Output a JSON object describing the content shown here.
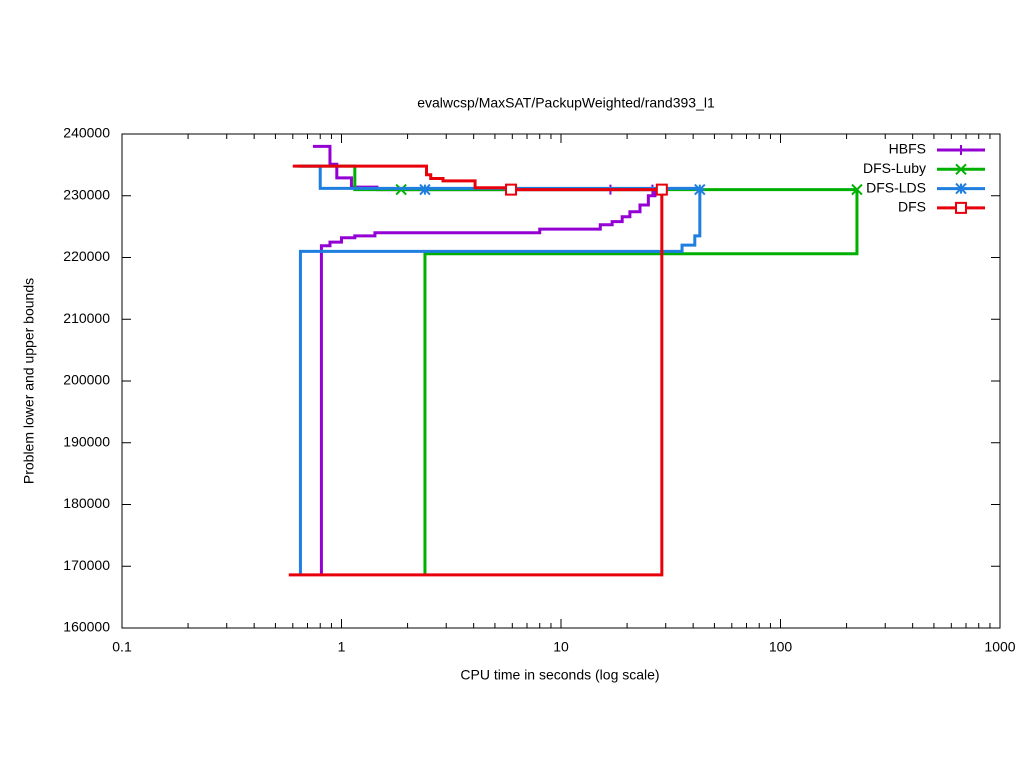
{
  "chart_data": {
    "type": "step",
    "title": "evalwcsp/MaxSAT/PackupWeighted/rand393_l1",
    "x_label": "CPU time in seconds (log scale)",
    "y_label": "Problem lower and upper bounds",
    "x_scale": "log",
    "xlim": [
      0.1,
      1000
    ],
    "xticks": [
      0.1,
      1,
      10,
      100,
      1000
    ],
    "ylim": [
      160000,
      240000
    ],
    "yticks": [
      160000,
      170000,
      180000,
      190000,
      200000,
      210000,
      220000,
      230000,
      240000
    ],
    "legend": "top-right",
    "series": [
      {
        "name": "HBFS",
        "color": "#9400d3",
        "marker": "plus",
        "x": [
          0.741,
          0.886,
          0.952,
          1.11,
          1.45,
          28.5,
          null,
          0.81,
          0.81,
          0.886,
          1.0,
          1.15,
          1.42,
          8.0,
          15.1,
          17.1,
          19.0,
          20.6,
          22.9,
          25.0,
          26.8,
          28.5
        ],
        "y": [
          238000,
          235100,
          232900,
          231400,
          231000,
          231000,
          null,
          168600,
          221900,
          222500,
          223200,
          223500,
          224000,
          224600,
          225300,
          225800,
          226600,
          227400,
          228500,
          230000,
          230900,
          230900
        ],
        "marker_x": [
          16.8,
          26.1
        ],
        "marker_y": [
          231000,
          231000
        ]
      },
      {
        "name": "DFS-Luby",
        "color": "#00b000",
        "marker": "cross",
        "x": [
          0.65,
          1.15,
          223,
          null,
          2.4,
          2.4,
          223,
          223
        ],
        "y": [
          234800,
          231000,
          231000,
          null,
          168600,
          220600,
          220600,
          231000
        ],
        "marker_x": [
          1.87,
          223
        ],
        "marker_y": [
          231000,
          231000
        ]
      },
      {
        "name": "DFS-LDS",
        "color": "#1e7fe0",
        "marker": "star",
        "x": [
          0.63,
          0.8,
          42.9,
          null,
          0.65,
          0.65,
          35.6,
          40.7,
          42.9,
          42.9
        ],
        "y": [
          234800,
          231200,
          231200,
          null,
          168600,
          221000,
          222000,
          223500,
          231000,
          231000
        ],
        "marker_x": [
          2.4,
          42.9
        ],
        "marker_y": [
          231000,
          231000
        ]
      },
      {
        "name": "DFS",
        "color": "#e8000b",
        "marker": "square",
        "x": [
          0.6,
          2.44,
          2.55,
          2.9,
          4.06,
          5.8,
          28.8,
          null,
          0.575,
          28.8,
          28.8
        ],
        "y": [
          234800,
          233400,
          232800,
          232400,
          231300,
          231000,
          231000,
          null,
          168600,
          168600,
          231000
        ],
        "marker_x": [
          5.92,
          28.8
        ],
        "marker_y": [
          231000,
          231000
        ]
      }
    ]
  }
}
